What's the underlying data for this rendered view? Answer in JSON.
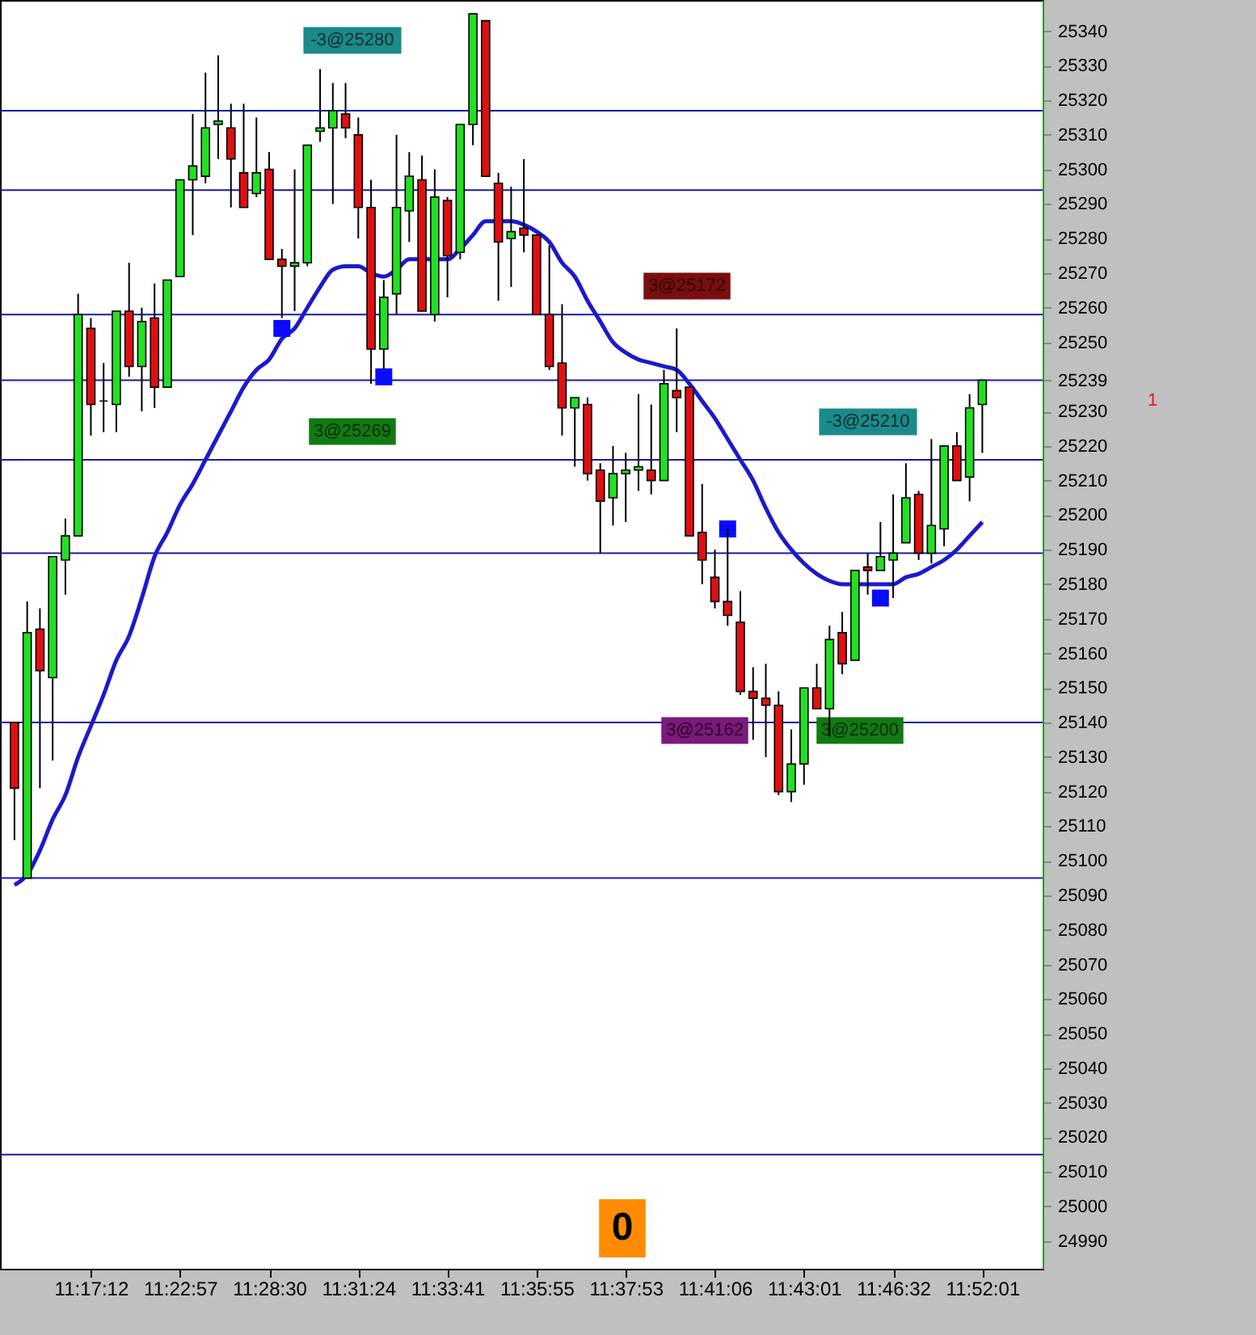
{
  "chart_data": {
    "type": "candlestick",
    "categories": [
      null,
      null,
      null,
      null,
      null,
      null,
      "11:17:12",
      null,
      null,
      null,
      null,
      null,
      null,
      "11:22:57",
      null,
      null,
      null,
      null,
      null,
      null,
      "11:28:30",
      null,
      null,
      null,
      null,
      null,
      null,
      "11:31:24",
      null,
      null,
      null,
      null,
      null,
      null,
      "11:33:41",
      null,
      null,
      null,
      null,
      null,
      null,
      "11:35:55",
      null,
      null,
      null,
      null,
      null,
      null,
      "11:37:53",
      null,
      null,
      null,
      null,
      null,
      null,
      "11:41:06",
      null,
      null,
      null,
      null,
      null,
      null,
      "11:43:01",
      null,
      null,
      null,
      null,
      null,
      null,
      "11:46:32",
      null,
      null,
      null,
      null,
      null,
      null,
      "11:52:01"
    ],
    "ohlc": [
      [
        25140,
        25140,
        25106,
        25121
      ],
      [
        25095,
        25175,
        25095,
        25166
      ],
      [
        25167,
        25173,
        25121,
        25155
      ],
      [
        25153,
        25188,
        25129,
        25188
      ],
      [
        25187,
        25199,
        25177,
        25194
      ],
      [
        25194,
        25264,
        25194,
        25258
      ],
      [
        25254,
        25257,
        25223,
        25232
      ],
      [
        25233,
        25244,
        25224,
        25233
      ],
      [
        25232,
        25259,
        25224,
        25259
      ],
      [
        25259,
        25273,
        25240,
        25243
      ],
      [
        25243,
        25260,
        25230,
        25256
      ],
      [
        25257,
        25267,
        25231,
        25237
      ],
      [
        25237,
        25268,
        25237,
        25268
      ],
      [
        25269,
        25297,
        25269,
        25297
      ],
      [
        25297,
        25316,
        25281,
        25301
      ],
      [
        25298,
        25328,
        25296,
        25312
      ],
      [
        25313,
        25333,
        25303,
        25314
      ],
      [
        25312,
        25319,
        25289,
        25303
      ],
      [
        25299,
        25319,
        25289,
        25289
      ],
      [
        25293,
        25315,
        25292,
        25299
      ],
      [
        25300,
        25305,
        25274,
        25274
      ],
      [
        25274,
        25277,
        25257,
        25272
      ],
      [
        25272,
        25300,
        25259,
        25273
      ],
      [
        25273,
        25307,
        25272,
        25307
      ],
      [
        25311,
        25329,
        25308,
        25312
      ],
      [
        25312,
        25325,
        25290,
        25317
      ],
      [
        25316,
        25325,
        25309,
        25312
      ],
      [
        25310,
        25315,
        25280,
        25289
      ],
      [
        25289,
        25297,
        25238,
        25248
      ],
      [
        25248,
        25268,
        25242,
        25263
      ],
      [
        25264,
        25310,
        25258,
        25289
      ],
      [
        25288,
        25305,
        25279,
        25298
      ],
      [
        25297,
        25304,
        25259,
        25259
      ],
      [
        25258,
        25300,
        25256,
        25292
      ],
      [
        25291,
        25292,
        25263,
        25275
      ],
      [
        25276,
        25313,
        25274,
        25313
      ],
      [
        25313,
        25345,
        25307,
        25345
      ],
      [
        25343,
        25343,
        25298,
        25298
      ],
      [
        25296,
        25299,
        25262,
        25279
      ],
      [
        25280,
        25295,
        25266,
        25282
      ],
      [
        25283,
        25303,
        25276,
        25281
      ],
      [
        25281,
        25281,
        25258,
        25258
      ],
      [
        25258,
        25278,
        25242,
        25243
      ],
      [
        25244,
        25261,
        25223,
        25231
      ],
      [
        25231,
        25234,
        25214,
        25234
      ],
      [
        25232,
        25234,
        25210,
        25212
      ],
      [
        25213,
        25215,
        25189,
        25204
      ],
      [
        25205,
        25220,
        25197,
        25212
      ],
      [
        25212,
        25218,
        25198,
        25213
      ],
      [
        25213,
        25235,
        25207,
        25214
      ],
      [
        25213,
        25232,
        25206,
        25210
      ],
      [
        25210,
        25242,
        25210,
        25238
      ],
      [
        25236,
        25254,
        25224,
        25234
      ],
      [
        25237,
        25237,
        25194,
        25194
      ],
      [
        25195,
        25209,
        25180,
        25187
      ],
      [
        25182,
        25190,
        25173,
        25175
      ],
      [
        25175,
        25196,
        25168,
        25171
      ],
      [
        25169,
        25178,
        25148,
        25149
      ],
      [
        25149,
        25156,
        25135,
        25147
      ],
      [
        25147,
        25157,
        25130,
        25145
      ],
      [
        25145,
        25149,
        25119,
        25120
      ],
      [
        25120,
        25138,
        25117,
        25128
      ],
      [
        25128,
        25150,
        25122,
        25150
      ],
      [
        25150,
        25157,
        25144,
        25144
      ],
      [
        25144,
        25168,
        25136,
        25164
      ],
      [
        25166,
        25172,
        25154,
        25157
      ],
      [
        25158,
        25184,
        25158,
        25184
      ],
      [
        25185,
        25189,
        25177,
        25184
      ],
      [
        25184,
        25198,
        25184,
        25188
      ],
      [
        25187,
        25206,
        25176,
        25189
      ],
      [
        25192,
        25215,
        25192,
        25205
      ],
      [
        25206,
        25207,
        25187,
        25189
      ],
      [
        25189,
        25222,
        25186,
        25197
      ],
      [
        25196,
        25220,
        25191,
        25220
      ],
      [
        25220,
        25224,
        25210,
        25210
      ],
      [
        25211,
        25235,
        25204,
        25231
      ],
      [
        25232,
        25239,
        25218,
        25239
      ]
    ],
    "colors": [
      "#e01010",
      "#22e022",
      "#e01010",
      "#22e022",
      "#22e022",
      "#22e022",
      "#e01010",
      "#000000",
      "#22e022",
      "#e01010",
      "#22e022",
      "#e01010",
      "#22e022",
      "#22e022",
      "#22e022",
      "#22e022",
      "#22e022",
      "#e01010",
      "#e01010",
      "#22e022",
      "#e01010",
      "#e01010",
      "#22e022",
      "#22e022",
      "#22e022",
      "#22e022",
      "#e01010",
      "#e01010",
      "#e01010",
      "#22e022",
      "#22e022",
      "#22e022",
      "#e01010",
      "#22e022",
      "#e01010",
      "#22e022",
      "#22e022",
      "#e01010",
      "#e01010",
      "#22e022",
      "#e01010",
      "#e01010",
      "#e01010",
      "#e01010",
      "#22e022",
      "#e01010",
      "#e01010",
      "#22e022",
      "#22e022",
      "#22e022",
      "#e01010",
      "#22e022",
      "#e01010",
      "#e01010",
      "#e01010",
      "#e01010",
      "#e01010",
      "#e01010",
      "#e01010",
      "#e01010",
      "#e01010",
      "#22e022",
      "#22e022",
      "#e01010",
      "#22e022",
      "#e01010",
      "#22e022",
      "#e01010",
      "#22e022",
      "#22e022",
      "#22e022",
      "#e01010",
      "#22e022",
      "#22e022",
      "#e01010",
      "#22e022",
      "#22e022"
    ],
    "series": [
      {
        "type": "line",
        "color": "#1a1acd",
        "values": [
          25093,
          25096,
          25103,
          25112,
          25119,
          25130,
          25139,
          25148,
          25158,
          25165,
          25176,
          25188,
          25195,
          25203,
          25209,
          25216,
          25223,
          25230,
          25237,
          25242,
          25245,
          25251,
          25254,
          25260,
          25266,
          25271,
          25272,
          25272,
          25270,
          25269,
          25271,
          25274,
          25274,
          25274,
          25274,
          25277,
          25281,
          25285,
          25285,
          25285,
          25284,
          25282,
          25279,
          25273,
          25269,
          25262,
          25256,
          25250,
          25247,
          25245,
          25244,
          25243,
          25242,
          25238,
          25233,
          25228,
          25222,
          25216,
          25210,
          25202,
          25195,
          25190,
          25186,
          25183,
          25181,
          25180,
          25180,
          25180,
          25180,
          25180,
          25182,
          25183,
          25185,
          25187,
          25190,
          25194,
          25198
        ]
      },
      {
        "type": "scatter",
        "color": "#0a0aff",
        "marker": "square",
        "values": [
          null,
          null,
          null,
          null,
          null,
          null,
          null,
          null,
          null,
          null,
          null,
          null,
          null,
          null,
          null,
          null,
          null,
          null,
          null,
          null,
          null,
          25254,
          null,
          null,
          null,
          null,
          null,
          null,
          null,
          25240,
          null,
          null,
          null,
          null,
          null,
          null,
          null,
          null,
          null,
          null,
          null,
          null,
          null,
          null,
          null,
          null,
          null,
          null,
          null,
          null,
          null,
          null,
          null,
          null,
          null,
          null,
          25196,
          null,
          null,
          null,
          null,
          null,
          null,
          null,
          null,
          null,
          null,
          null,
          25176,
          null,
          null,
          null,
          null,
          null,
          null,
          null,
          null
        ]
      }
    ],
    "ref_lines": [
      {
        "axis": "y",
        "value": 25317,
        "color": "#1a1aa0"
      },
      {
        "axis": "y",
        "value": 25294,
        "color": "#1a1aa0"
      },
      {
        "axis": "y",
        "value": 25258,
        "color": "#1a1aa0"
      },
      {
        "axis": "y",
        "value": 25239,
        "color": "#1a1aa0"
      },
      {
        "axis": "y",
        "value": 25216,
        "color": "#1a1aa0"
      },
      {
        "axis": "y",
        "value": 25189,
        "color": "#1a1aa0"
      },
      {
        "axis": "y",
        "value": 25140,
        "color": "#1a1aa0"
      },
      {
        "axis": "y",
        "value": 25095,
        "color": "#1a1acd"
      },
      {
        "axis": "y",
        "value": 25015,
        "color": "#1a1aa0"
      }
    ],
    "ylim": [
      24982,
      25349
    ],
    "yticks": [
      24990,
      25000,
      25010,
      25020,
      25030,
      25040,
      25050,
      25060,
      25070,
      25080,
      25090,
      25100,
      25110,
      25120,
      25130,
      25140,
      25150,
      25160,
      25170,
      25180,
      25190,
      25200,
      25210,
      25220,
      25230,
      25239,
      25250,
      25260,
      25270,
      25280,
      25290,
      25300,
      25310,
      25320,
      25330,
      25340
    ],
    "annotations": [
      "-3@25280",
      "3@25269",
      "3@25172",
      "3@25162",
      "-3@25210",
      "3@25200",
      "0",
      "1"
    ],
    "grid": false
  }
}
